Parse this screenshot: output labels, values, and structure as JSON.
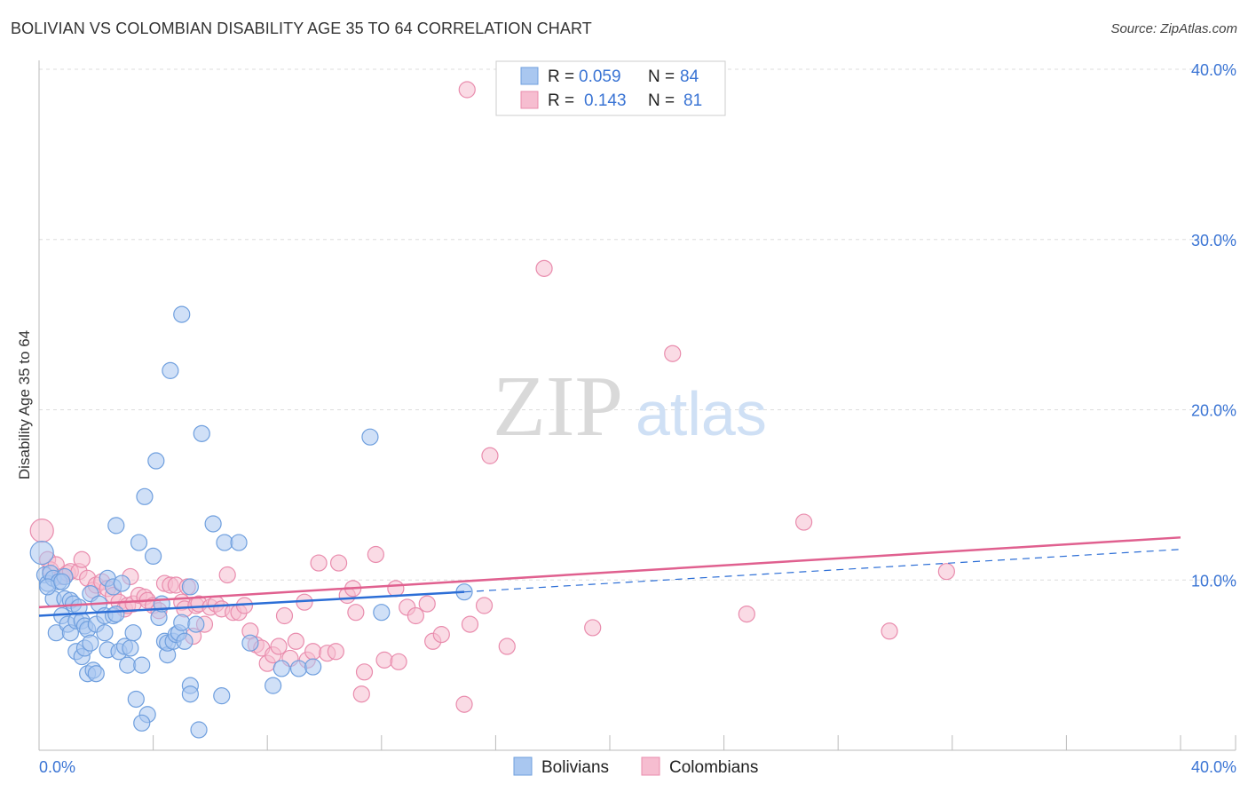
{
  "header": {
    "title": "BOLIVIAN VS COLOMBIAN DISABILITY AGE 35 TO 64 CORRELATION CHART",
    "source": "Source: ZipAtlas.com"
  },
  "watermark": {
    "zip": "ZIP",
    "atlas": "atlas"
  },
  "colors": {
    "blue_fill": "#a9c7f0",
    "blue_stroke": "#6f9fde",
    "blue_line": "#2c6ed6",
    "pink_fill": "#f6bdd0",
    "pink_stroke": "#e98cad",
    "pink_line": "#e0608f",
    "tick_label": "#3a74d4",
    "grid": "#dddddd"
  },
  "legend": {
    "rows": [
      {
        "r_label": "R =",
        "r_value": "0.059",
        "n_label": "N =",
        "n_value": "84"
      },
      {
        "r_label": "R =",
        "r_value": "0.143",
        "n_label": "N =",
        "n_value": "81"
      }
    ]
  },
  "bottom_legend": {
    "items": [
      "Bolivians",
      "Colombians"
    ]
  },
  "chart_data": {
    "type": "scatter",
    "title": "BOLIVIAN VS COLOMBIAN DISABILITY AGE 35 TO 64 CORRELATION CHART",
    "xlabel": "",
    "ylabel": "Disability Age 35 to 64",
    "xlim": [
      0,
      40
    ],
    "ylim": [
      0,
      40
    ],
    "x_tick_labels": [
      "0.0%",
      "40.0%"
    ],
    "y_ticks": [
      10,
      20,
      30,
      40
    ],
    "y_tick_labels": [
      "10.0%",
      "20.0%",
      "30.0%",
      "40.0%"
    ],
    "grid": true,
    "series": [
      {
        "name": "Bolivians",
        "R": 0.059,
        "N": 84,
        "trend": {
          "x": [
            0,
            14.9
          ],
          "y": [
            7.9,
            9.3
          ]
        },
        "trend_dashed": {
          "x": [
            14.9,
            40
          ],
          "y": [
            9.3,
            11.8
          ]
        },
        "points": [
          [
            0.1,
            11.6
          ],
          [
            0.2,
            10.3
          ],
          [
            0.3,
            9.8
          ],
          [
            0.4,
            10.4
          ],
          [
            0.5,
            8.9
          ],
          [
            0.5,
            10.1
          ],
          [
            0.7,
            9.9
          ],
          [
            0.9,
            10.2
          ],
          [
            0.6,
            6.9
          ],
          [
            0.8,
            7.9
          ],
          [
            0.9,
            8.9
          ],
          [
            1.0,
            7.4
          ],
          [
            1.1,
            6.9
          ],
          [
            1.1,
            8.8
          ],
          [
            1.2,
            8.6
          ],
          [
            1.3,
            7.6
          ],
          [
            1.3,
            5.8
          ],
          [
            1.4,
            8.4
          ],
          [
            1.5,
            7.6
          ],
          [
            1.6,
            7.3
          ],
          [
            1.5,
            5.5
          ],
          [
            1.6,
            6.0
          ],
          [
            1.8,
            9.2
          ],
          [
            1.7,
            7.1
          ],
          [
            1.7,
            4.5
          ],
          [
            1.9,
            4.7
          ],
          [
            1.8,
            6.3
          ],
          [
            2.0,
            7.4
          ],
          [
            2.0,
            4.5
          ],
          [
            2.1,
            8.6
          ],
          [
            2.3,
            7.9
          ],
          [
            2.3,
            6.9
          ],
          [
            2.4,
            5.9
          ],
          [
            2.4,
            10.1
          ],
          [
            2.6,
            9.6
          ],
          [
            2.6,
            7.9
          ],
          [
            2.7,
            13.2
          ],
          [
            2.7,
            8.0
          ],
          [
            2.8,
            5.8
          ],
          [
            2.9,
            9.8
          ],
          [
            3.0,
            6.1
          ],
          [
            3.2,
            6.0
          ],
          [
            3.1,
            5.0
          ],
          [
            3.3,
            6.9
          ],
          [
            3.4,
            3.0
          ],
          [
            3.5,
            12.2
          ],
          [
            3.6,
            5.0
          ],
          [
            3.7,
            14.9
          ],
          [
            3.8,
            2.1
          ],
          [
            3.6,
            1.6
          ],
          [
            4.0,
            11.4
          ],
          [
            4.1,
            17.0
          ],
          [
            4.2,
            7.8
          ],
          [
            4.3,
            8.6
          ],
          [
            4.4,
            6.4
          ],
          [
            4.5,
            5.6
          ],
          [
            4.5,
            6.3
          ],
          [
            4.6,
            22.3
          ],
          [
            4.7,
            6.4
          ],
          [
            4.8,
            6.8
          ],
          [
            4.9,
            6.9
          ],
          [
            5.0,
            7.5
          ],
          [
            5.1,
            6.4
          ],
          [
            5.3,
            9.6
          ],
          [
            5.0,
            25.6
          ],
          [
            5.3,
            3.8
          ],
          [
            5.3,
            3.3
          ],
          [
            5.5,
            7.4
          ],
          [
            5.6,
            1.2
          ],
          [
            5.7,
            18.6
          ],
          [
            6.1,
            13.3
          ],
          [
            6.4,
            3.2
          ],
          [
            6.5,
            12.2
          ],
          [
            7.0,
            12.2
          ],
          [
            7.4,
            6.3
          ],
          [
            8.2,
            3.8
          ],
          [
            8.5,
            4.8
          ],
          [
            9.1,
            4.8
          ],
          [
            9.6,
            4.9
          ],
          [
            11.6,
            18.4
          ],
          [
            12.0,
            8.1
          ],
          [
            0.3,
            9.6
          ],
          [
            0.8,
            9.9
          ],
          [
            14.9,
            9.3
          ]
        ]
      },
      {
        "name": "Colombians",
        "R": 0.143,
        "N": 81,
        "trend": {
          "x": [
            0,
            40
          ],
          "y": [
            8.4,
            12.5
          ]
        },
        "points": [
          [
            0.1,
            12.9
          ],
          [
            0.3,
            11.2
          ],
          [
            0.4,
            10.6
          ],
          [
            0.6,
            10.9
          ],
          [
            0.8,
            10.2
          ],
          [
            1.0,
            10.4
          ],
          [
            1.1,
            10.5
          ],
          [
            1.4,
            10.5
          ],
          [
            1.5,
            11.2
          ],
          [
            1.7,
            10.1
          ],
          [
            1.9,
            9.4
          ],
          [
            2.0,
            9.7
          ],
          [
            2.2,
            9.9
          ],
          [
            2.4,
            9.5
          ],
          [
            2.6,
            9.1
          ],
          [
            2.8,
            8.7
          ],
          [
            3.0,
            8.3
          ],
          [
            3.1,
            8.5
          ],
          [
            3.2,
            10.2
          ],
          [
            3.3,
            8.6
          ],
          [
            3.5,
            9.1
          ],
          [
            3.7,
            9.0
          ],
          [
            3.8,
            8.8
          ],
          [
            4.0,
            8.5
          ],
          [
            4.2,
            8.2
          ],
          [
            4.4,
            9.8
          ],
          [
            4.6,
            9.7
          ],
          [
            4.8,
            9.7
          ],
          [
            5.0,
            8.7
          ],
          [
            5.1,
            8.3
          ],
          [
            5.2,
            9.6
          ],
          [
            5.4,
            6.7
          ],
          [
            5.5,
            8.5
          ],
          [
            5.6,
            8.6
          ],
          [
            5.8,
            7.4
          ],
          [
            6.0,
            8.4
          ],
          [
            6.2,
            8.6
          ],
          [
            6.4,
            8.3
          ],
          [
            6.6,
            10.3
          ],
          [
            6.8,
            8.1
          ],
          [
            7.0,
            8.1
          ],
          [
            7.2,
            8.5
          ],
          [
            7.4,
            7.0
          ],
          [
            7.6,
            6.2
          ],
          [
            7.8,
            6.0
          ],
          [
            8.0,
            5.1
          ],
          [
            8.2,
            5.6
          ],
          [
            8.4,
            6.1
          ],
          [
            8.6,
            7.9
          ],
          [
            8.8,
            5.4
          ],
          [
            9.0,
            6.4
          ],
          [
            9.3,
            8.7
          ],
          [
            9.4,
            5.3
          ],
          [
            9.6,
            5.8
          ],
          [
            9.8,
            11.0
          ],
          [
            10.1,
            5.7
          ],
          [
            10.4,
            5.8
          ],
          [
            10.5,
            11.0
          ],
          [
            10.8,
            9.1
          ],
          [
            11.0,
            9.5
          ],
          [
            11.1,
            8.1
          ],
          [
            11.3,
            3.3
          ],
          [
            11.4,
            4.6
          ],
          [
            11.8,
            11.5
          ],
          [
            12.1,
            5.3
          ],
          [
            12.5,
            9.5
          ],
          [
            12.6,
            5.2
          ],
          [
            12.9,
            8.4
          ],
          [
            13.2,
            7.9
          ],
          [
            13.6,
            8.6
          ],
          [
            13.8,
            6.4
          ],
          [
            14.1,
            6.8
          ],
          [
            14.9,
            2.7
          ],
          [
            15.1,
            7.4
          ],
          [
            15.6,
            8.5
          ],
          [
            15.8,
            17.3
          ],
          [
            16.4,
            6.1
          ],
          [
            17.7,
            28.3
          ],
          [
            19.4,
            7.2
          ],
          [
            15.0,
            38.8
          ],
          [
            22.2,
            23.3
          ]
        ],
        "extra_points": [
          [
            24.8,
            8.0
          ],
          [
            26.8,
            13.4
          ],
          [
            29.8,
            7.0
          ],
          [
            31.8,
            10.5
          ]
        ]
      }
    ]
  }
}
